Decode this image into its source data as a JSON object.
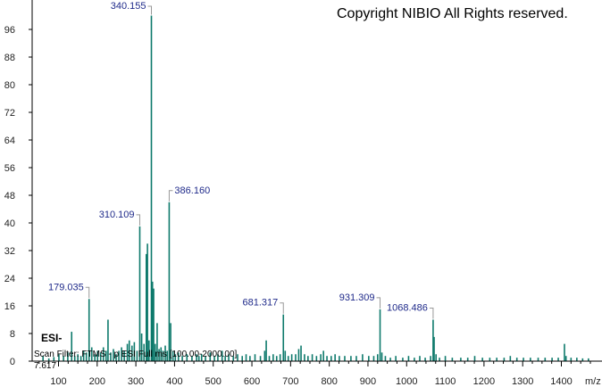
{
  "chart_data": {
    "type": "bar",
    "xlabel": "m/z",
    "ylabel": "",
    "xlim": [
      40,
      1480
    ],
    "ylim": [
      0,
      104
    ],
    "x_ticks": [
      100,
      200,
      300,
      400,
      500,
      600,
      700,
      800,
      900,
      1000,
      1100,
      1200,
      1300,
      1400
    ],
    "y_ticks": [
      0,
      8,
      16,
      24,
      32,
      40,
      48,
      56,
      64,
      72,
      80,
      88,
      96
    ],
    "copyright": "Copyright NIBIO All Rights reserved.",
    "ion_mode": "ESI-",
    "scan_filter": "Scan Filter: FTMS - p ESI Full ms [100.00-2000.00]",
    "intensity_value": "7.617",
    "labeled_peaks": [
      {
        "mz": 179.035,
        "intensity": 18,
        "label": "179.035"
      },
      {
        "mz": 310.109,
        "intensity": 39,
        "label": "310.109"
      },
      {
        "mz": 340.155,
        "intensity": 100,
        "label": "340.155"
      },
      {
        "mz": 386.16,
        "intensity": 46,
        "label": "386.160"
      },
      {
        "mz": 681.317,
        "intensity": 13.5,
        "label": "681.317"
      },
      {
        "mz": 931.309,
        "intensity": 15,
        "label": "931.309"
      },
      {
        "mz": 1068.486,
        "intensity": 12,
        "label": "1068.486"
      }
    ],
    "peaks": [
      [
        60,
        1.5
      ],
      [
        75,
        0.8
      ],
      [
        88,
        1.2
      ],
      [
        101,
        2
      ],
      [
        113,
        1.5
      ],
      [
        124,
        2.5
      ],
      [
        134,
        8.5
      ],
      [
        142,
        1.5
      ],
      [
        150,
        2
      ],
      [
        158,
        1.5
      ],
      [
        165,
        3
      ],
      [
        172,
        2.5
      ],
      [
        179.035,
        18
      ],
      [
        186,
        4
      ],
      [
        194,
        2
      ],
      [
        201,
        3
      ],
      [
        209,
        2.5
      ],
      [
        216,
        4
      ],
      [
        223,
        3
      ],
      [
        228,
        12
      ],
      [
        235,
        2.5
      ],
      [
        242,
        3.5
      ],
      [
        249,
        2
      ],
      [
        256,
        3
      ],
      [
        263,
        4
      ],
      [
        270,
        3
      ],
      [
        278,
        5
      ],
      [
        283,
        6
      ],
      [
        290,
        4.5
      ],
      [
        296,
        5.5
      ],
      [
        303,
        3
      ],
      [
        310.109,
        39
      ],
      [
        315,
        8
      ],
      [
        321,
        5
      ],
      [
        327,
        31
      ],
      [
        330,
        34
      ],
      [
        334,
        6
      ],
      [
        340.155,
        100
      ],
      [
        343,
        23
      ],
      [
        346,
        21
      ],
      [
        350,
        5
      ],
      [
        355,
        11
      ],
      [
        360,
        3.5
      ],
      [
        365,
        4
      ],
      [
        370,
        3
      ],
      [
        376,
        4.5
      ],
      [
        381,
        3
      ],
      [
        386.16,
        46
      ],
      [
        390,
        11
      ],
      [
        396,
        3
      ],
      [
        402,
        2
      ],
      [
        410,
        2.5
      ],
      [
        420,
        1.5
      ],
      [
        432,
        2
      ],
      [
        445,
        1.5
      ],
      [
        457,
        2
      ],
      [
        463,
        1.5
      ],
      [
        470,
        2
      ],
      [
        480,
        1.5
      ],
      [
        492,
        2.5
      ],
      [
        503,
        1.5
      ],
      [
        512,
        2
      ],
      [
        523,
        3
      ],
      [
        531,
        1.5
      ],
      [
        540,
        2
      ],
      [
        552,
        1.5
      ],
      [
        563,
        2
      ],
      [
        575,
        1.5
      ],
      [
        585,
        2
      ],
      [
        595,
        1.5
      ],
      [
        608,
        2
      ],
      [
        622,
        1.5
      ],
      [
        633,
        3
      ],
      [
        637,
        6
      ],
      [
        645,
        1.5
      ],
      [
        655,
        2
      ],
      [
        664,
        1.5
      ],
      [
        673,
        2
      ],
      [
        681.317,
        13.5
      ],
      [
        686,
        3
      ],
      [
        694,
        1.5
      ],
      [
        703,
        2
      ],
      [
        713,
        2
      ],
      [
        721,
        3.5
      ],
      [
        727,
        4.5
      ],
      [
        736,
        2
      ],
      [
        745,
        1.5
      ],
      [
        756,
        2
      ],
      [
        767,
        1.5
      ],
      [
        778,
        2
      ],
      [
        785,
        3
      ],
      [
        794,
        1.5
      ],
      [
        805,
        1.5
      ],
      [
        815,
        2
      ],
      [
        826,
        1.5
      ],
      [
        840,
        1.5
      ],
      [
        856,
        1.5
      ],
      [
        870,
        1.5
      ],
      [
        886,
        2
      ],
      [
        902,
        1.5
      ],
      [
        915,
        1.5
      ],
      [
        925,
        2
      ],
      [
        931.309,
        15
      ],
      [
        936,
        2.5
      ],
      [
        945,
        1.5
      ],
      [
        958,
        1
      ],
      [
        972,
        1.5
      ],
      [
        990,
        1
      ],
      [
        1005,
        1.5
      ],
      [
        1020,
        1
      ],
      [
        1034,
        1.5
      ],
      [
        1048,
        1
      ],
      [
        1062,
        1.5
      ],
      [
        1068.486,
        12
      ],
      [
        1071,
        7
      ],
      [
        1076,
        2
      ],
      [
        1085,
        1
      ],
      [
        1100,
        1.5
      ],
      [
        1118,
        1
      ],
      [
        1140,
        1
      ],
      [
        1158,
        1
      ],
      [
        1176,
        1.5
      ],
      [
        1196,
        1
      ],
      [
        1215,
        1
      ],
      [
        1233,
        1
      ],
      [
        1252,
        1
      ],
      [
        1268,
        1.5
      ],
      [
        1285,
        1
      ],
      [
        1302,
        1
      ],
      [
        1320,
        1
      ],
      [
        1340,
        1
      ],
      [
        1358,
        1
      ],
      [
        1376,
        1
      ],
      [
        1392,
        1
      ],
      [
        1408,
        5
      ],
      [
        1412,
        1.5
      ],
      [
        1425,
        1
      ],
      [
        1440,
        1
      ],
      [
        1455,
        0.8
      ],
      [
        1470,
        0.8
      ]
    ]
  }
}
